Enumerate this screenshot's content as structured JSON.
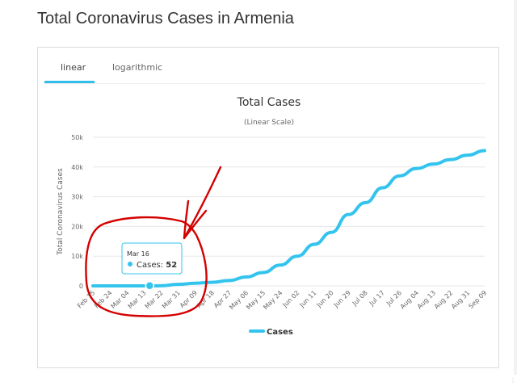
{
  "page": {
    "title": "Total Coronavirus Cases in Armenia"
  },
  "tabs": [
    {
      "label": "linear",
      "active": true
    },
    {
      "label": "logarithmic",
      "active": false
    }
  ],
  "colors": {
    "series": "#33c4ee",
    "annotation": "#d40000",
    "tooltip_border": "#33c4ee"
  },
  "tooltip": {
    "date": "Mar 16",
    "label": "Cases: ",
    "value": "52"
  },
  "chart_data": {
    "type": "line",
    "title": "Total Cases",
    "subtitle": "(Linear Scale)",
    "ylabel": "Total Coronavirus Cases",
    "ylim": [
      0,
      50000
    ],
    "y_ticks": [
      "0",
      "10k",
      "20k",
      "30k",
      "40k",
      "50k"
    ],
    "x_ticks": [
      "Feb 15",
      "Feb 24",
      "Mar 04",
      "Mar 13",
      "Mar 22",
      "Mar 31",
      "Apr 09",
      "Apr 18",
      "Apr 27",
      "May 06",
      "May 15",
      "May 24",
      "Jun 02",
      "Jun 11",
      "Jun 20",
      "Jun 29",
      "Jul 08",
      "Jul 17",
      "Jul 26",
      "Aug 04",
      "Aug 13",
      "Aug 22",
      "Aug 31",
      "Sep 09"
    ],
    "legend": {
      "position": "bottom-center"
    },
    "grid": true,
    "series": [
      {
        "name": "Cases",
        "values": [
          0,
          0,
          1,
          0,
          30,
          500,
          900,
          1200,
          1800,
          3000,
          4500,
          7000,
          10000,
          14000,
          18000,
          24000,
          28000,
          33000,
          37000,
          39500,
          41000,
          42500,
          44000,
          45500
        ]
      }
    ]
  }
}
